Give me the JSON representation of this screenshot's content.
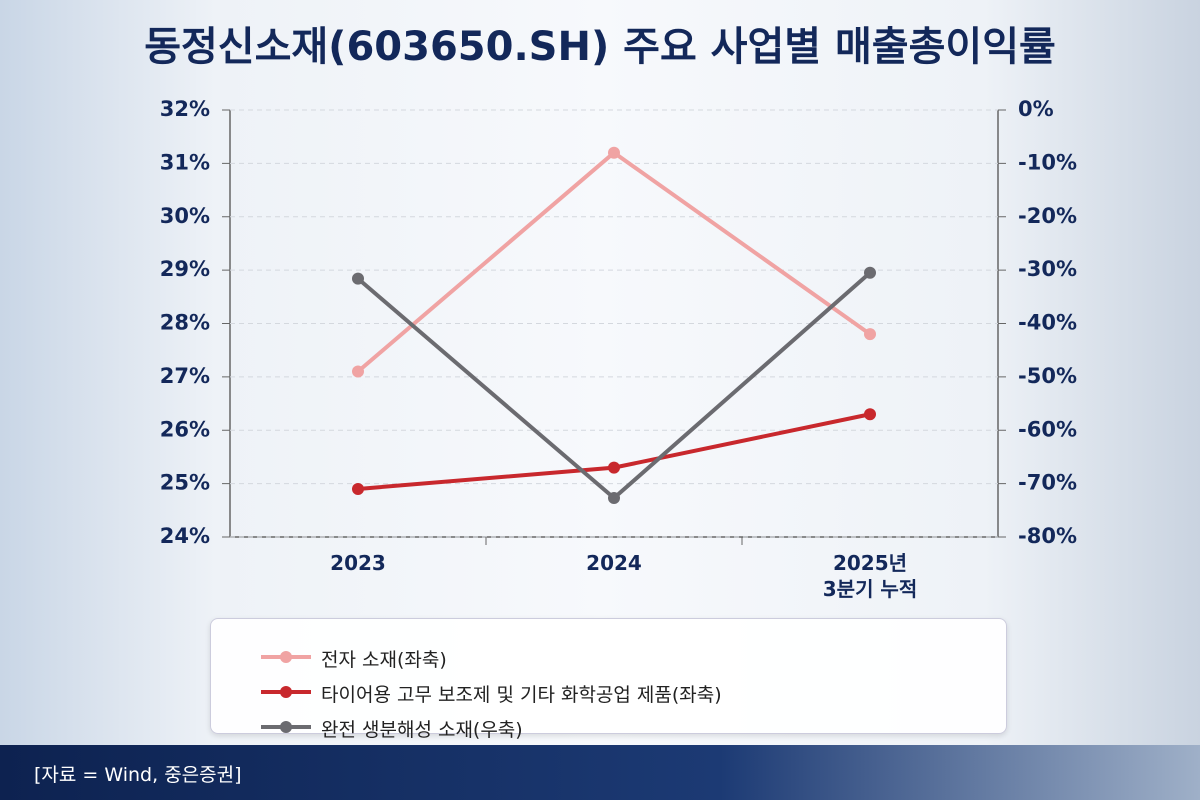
{
  "title": "동정신소재(603650.SH) 주요 사업별 매출총이익률",
  "source": "[자료 = Wind, 중은증권]",
  "chart_data": {
    "type": "line",
    "categories": [
      "2023",
      "2024",
      "2025년\n3분기 누적"
    ],
    "ylim": [
      24,
      32
    ],
    "yticks": [
      {
        "value": 24,
        "label": "24%"
      },
      {
        "value": 25,
        "label": "25%"
      },
      {
        "value": 26,
        "label": "26%"
      },
      {
        "value": 27,
        "label": "27%"
      },
      {
        "value": 28,
        "label": "28%"
      },
      {
        "value": 29,
        "label": "29%"
      },
      {
        "value": 30,
        "label": "30%"
      },
      {
        "value": 31,
        "label": "31%"
      },
      {
        "value": 32,
        "label": "32%"
      }
    ],
    "y2lim": [
      -80,
      0
    ],
    "y2ticks": [
      {
        "value": -80,
        "label": "-80%"
      },
      {
        "value": -70,
        "label": "-70%"
      },
      {
        "value": -60,
        "label": "-60%"
      },
      {
        "value": -50,
        "label": "-50%"
      },
      {
        "value": -40,
        "label": "-40%"
      },
      {
        "value": -30,
        "label": "-30%"
      },
      {
        "value": -20,
        "label": "-20%"
      },
      {
        "value": -10,
        "label": "-10%"
      },
      {
        "value": 0,
        "label": "0%"
      }
    ],
    "grid": true,
    "series": [
      {
        "name": "전자 소재(좌축)",
        "color": "#f0a3a3",
        "values": [
          27.1,
          31.2,
          27.8
        ]
      },
      {
        "name": "타이어용 고무 보조제 및 기타 화학공업 제품(좌축)",
        "color": "#c8282d",
        "values": [
          24.9,
          25.3,
          26.3
        ]
      },
      {
        "name": "완전 생분해성 소재(우축)",
        "color": "#6b6b70",
        "axis": "y2",
        "values": [
          -31.6,
          -72.7,
          -30.5
        ]
      }
    ]
  }
}
